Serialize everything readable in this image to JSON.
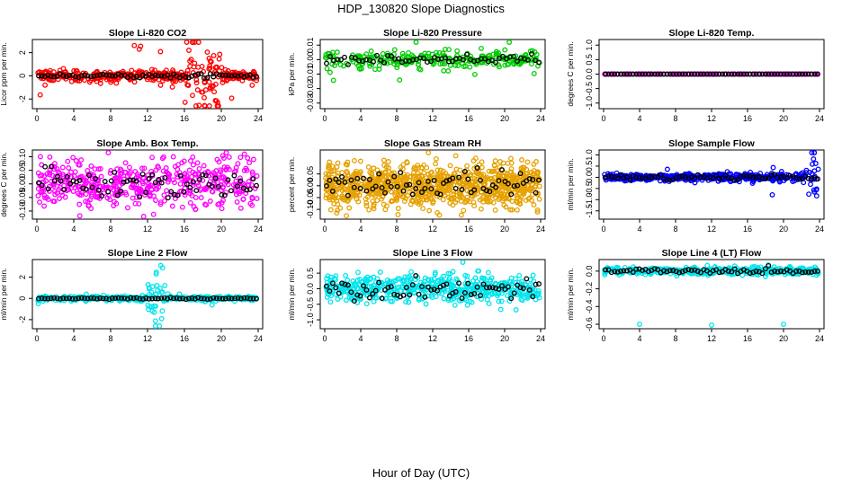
{
  "figure": {
    "title": "HDP_130820  Slope Diagnostics",
    "xlabel": "Hour of Day (UTC)"
  },
  "chart_data": [
    {
      "type": "scatter",
      "title": "Slope Li-820 CO2",
      "ylabel": "Licor ppm per min.",
      "xlim": [
        0,
        24
      ],
      "ylim": [
        -2.6,
        2.9
      ],
      "xticks": [
        0,
        4,
        8,
        12,
        16,
        20,
        24
      ],
      "yticks": [
        -2,
        0,
        2
      ],
      "ytick_labels": [
        "-2",
        "0",
        "2"
      ],
      "color": "#ff0000",
      "noise_base": 0.25,
      "outlier_scale": 2.6,
      "overlay_noise": 0.12,
      "bursts": [
        {
          "x0": 16,
          "x1": 20,
          "amp": 1.8
        }
      ],
      "series": [
        {
          "name": "all",
          "color": "#ff0000",
          "n": 420
        },
        {
          "name": "mean",
          "color": "#000000",
          "n": 72
        }
      ]
    },
    {
      "type": "scatter",
      "title": "Slope Li-820 Pressure",
      "ylabel": "kPa per min.",
      "xlim": [
        0,
        24
      ],
      "ylim": [
        -0.032,
        0.012
      ],
      "xticks": [
        0,
        4,
        8,
        12,
        16,
        20,
        24
      ],
      "yticks": [
        -0.03,
        -0.02,
        -0.01,
        0,
        0.01
      ],
      "ytick_labels": [
        "-0.03",
        "-0.02",
        "-0.01",
        "0.00",
        "0.01"
      ],
      "color": "#00cc00",
      "noise_base": 0.003,
      "outlier_scale": 0.03,
      "overlay_noise": 0.002,
      "bursts": [],
      "series": [
        {
          "name": "all",
          "color": "#00cc00",
          "n": 260
        },
        {
          "name": "mean",
          "color": "#000000",
          "n": 60
        }
      ]
    },
    {
      "type": "scatter",
      "title": "Slope Li-820 Temp.",
      "ylabel": "degrees C per min.",
      "xlim": [
        0,
        24
      ],
      "ylim": [
        -1.1,
        1.1
      ],
      "xticks": [
        0,
        4,
        8,
        12,
        16,
        20,
        24
      ],
      "yticks": [
        -1,
        -0.5,
        0,
        0.5,
        1
      ],
      "ytick_labels": [
        "-1.0",
        "-0.5",
        "0.0",
        "0.5",
        "1.0"
      ],
      "color": "#ff00ff",
      "noise_base": 0.0,
      "outlier_scale": 0.0,
      "overlay_noise": 0.0,
      "bursts": [],
      "series": [
        {
          "name": "all",
          "color": "#ff00ff",
          "n": 140
        },
        {
          "name": "mean",
          "color": "#000000",
          "n": 70
        }
      ]
    },
    {
      "type": "scatter",
      "title": "Slope Amb. Box Temp.",
      "ylabel": "degrees C per min.",
      "xlim": [
        0,
        24
      ],
      "ylim": [
        -0.12,
        0.115
      ],
      "xticks": [
        0,
        4,
        8,
        12,
        16,
        20,
        24
      ],
      "yticks": [
        -0.1,
        -0.05,
        0,
        0.05,
        0.1
      ],
      "ytick_labels": [
        "-0.10",
        "-0.05",
        "0.00",
        "0.05",
        "0.10"
      ],
      "color": "#ff00ff",
      "noise_base": 0.045,
      "outlier_scale": 0.11,
      "overlay_noise": 0.04,
      "bursts": [],
      "series": [
        {
          "name": "all",
          "color": "#ff00ff",
          "n": 480
        },
        {
          "name": "mean",
          "color": "#000000",
          "n": 70
        }
      ]
    },
    {
      "type": "scatter",
      "title": "Slope Gas Stream RH",
      "ylabel": "percent per min.",
      "xlim": [
        0,
        24
      ],
      "ylim": [
        -0.13,
        0.14
      ],
      "xticks": [
        0,
        4,
        8,
        12,
        16,
        20,
        24
      ],
      "yticks": [
        -0.1,
        -0.05,
        0,
        0.05
      ],
      "ytick_labels": [
        "-0.10",
        "-0.05",
        "0.00",
        "0.05"
      ],
      "color": "#e6a100",
      "noise_base": 0.045,
      "outlier_scale": 0.12,
      "overlay_noise": 0.04,
      "bursts": [],
      "series": [
        {
          "name": "all",
          "color": "#e6a100",
          "n": 900
        },
        {
          "name": "mean",
          "color": "#000000",
          "n": 70
        }
      ]
    },
    {
      "type": "scatter",
      "title": "Slope Sample Flow",
      "ylabel": "ml/min per min.",
      "xlim": [
        0,
        24
      ],
      "ylim": [
        -1.75,
        1.1
      ],
      "xticks": [
        0,
        4,
        8,
        12,
        16,
        20,
        24
      ],
      "yticks": [
        -1.5,
        -1,
        -0.5,
        0,
        0.5,
        1
      ],
      "ytick_labels": [
        "-1.5",
        "-1.0",
        "-0.5",
        "0.0",
        "0.5",
        "1.0"
      ],
      "color": "#0000ff",
      "noise_base": 0.08,
      "outlier_scale": 0.7,
      "overlay_noise": 0.1,
      "bursts": [
        {
          "x0": 22.5,
          "x1": 24,
          "amp": 0.6
        }
      ],
      "series": [
        {
          "name": "all",
          "color": "#0000ff",
          "n": 520
        },
        {
          "name": "mean",
          "color": "#000000",
          "n": 70
        }
      ]
    },
    {
      "type": "scatter",
      "title": "Slope Line 2 Flow",
      "ylabel": "ml/min per min.",
      "xlim": [
        0,
        24
      ],
      "ylim": [
        -2.6,
        3.4
      ],
      "xticks": [
        0,
        4,
        8,
        12,
        16,
        20,
        24
      ],
      "yticks": [
        -2,
        0,
        2
      ],
      "ytick_labels": [
        "-2",
        "0",
        "2"
      ],
      "color": "#00e5ee",
      "noise_base": 0.12,
      "outlier_scale": 1.0,
      "overlay_noise": 0.05,
      "bursts": [
        {
          "x0": 12,
          "x1": 14,
          "amp": 1.6
        }
      ],
      "series": [
        {
          "name": "all",
          "color": "#00e5ee",
          "n": 360
        },
        {
          "name": "mean",
          "color": "#000000",
          "n": 72
        }
      ]
    },
    {
      "type": "scatter",
      "title": "Slope Line 3 Flow",
      "ylabel": "ml/min per min.",
      "xlim": [
        0,
        24
      ],
      "ylim": [
        -1.2,
        0.85
      ],
      "xticks": [
        0,
        4,
        8,
        12,
        16,
        20,
        24
      ],
      "yticks": [
        -1,
        -0.5,
        0,
        0.5
      ],
      "ytick_labels": [
        "-1.0",
        "-0.5",
        "0.0",
        "0.5"
      ],
      "color": "#00e5ee",
      "noise_base": 0.22,
      "outlier_scale": 0.8,
      "overlay_noise": 0.22,
      "bursts": [],
      "series": [
        {
          "name": "all",
          "color": "#00e5ee",
          "n": 520
        },
        {
          "name": "mean",
          "color": "#000000",
          "n": 70
        }
      ]
    },
    {
      "type": "scatter",
      "title": "Slope Line 4 (LT) Flow",
      "ylabel": "ml/min per min.",
      "xlim": [
        0,
        24
      ],
      "ylim": [
        -0.62,
        0.1
      ],
      "xticks": [
        0,
        4,
        8,
        12,
        16,
        20,
        24
      ],
      "yticks": [
        -0.6,
        -0.4,
        -0.2,
        0
      ],
      "ytick_labels": [
        "-0.6",
        "-0.4",
        "-0.2",
        "0.0"
      ],
      "color": "#00e5ee",
      "noise_base": 0.02,
      "outlier_scale": 0.05,
      "overlay_noise": 0.02,
      "bursts": [],
      "outliers": [
        {
          "x": 4,
          "y": -0.6
        },
        {
          "x": 12,
          "y": -0.61
        },
        {
          "x": 20,
          "y": -0.6
        }
      ],
      "series": [
        {
          "name": "all",
          "color": "#00e5ee",
          "n": 440
        },
        {
          "name": "mean",
          "color": "#000000",
          "n": 70
        }
      ]
    }
  ]
}
